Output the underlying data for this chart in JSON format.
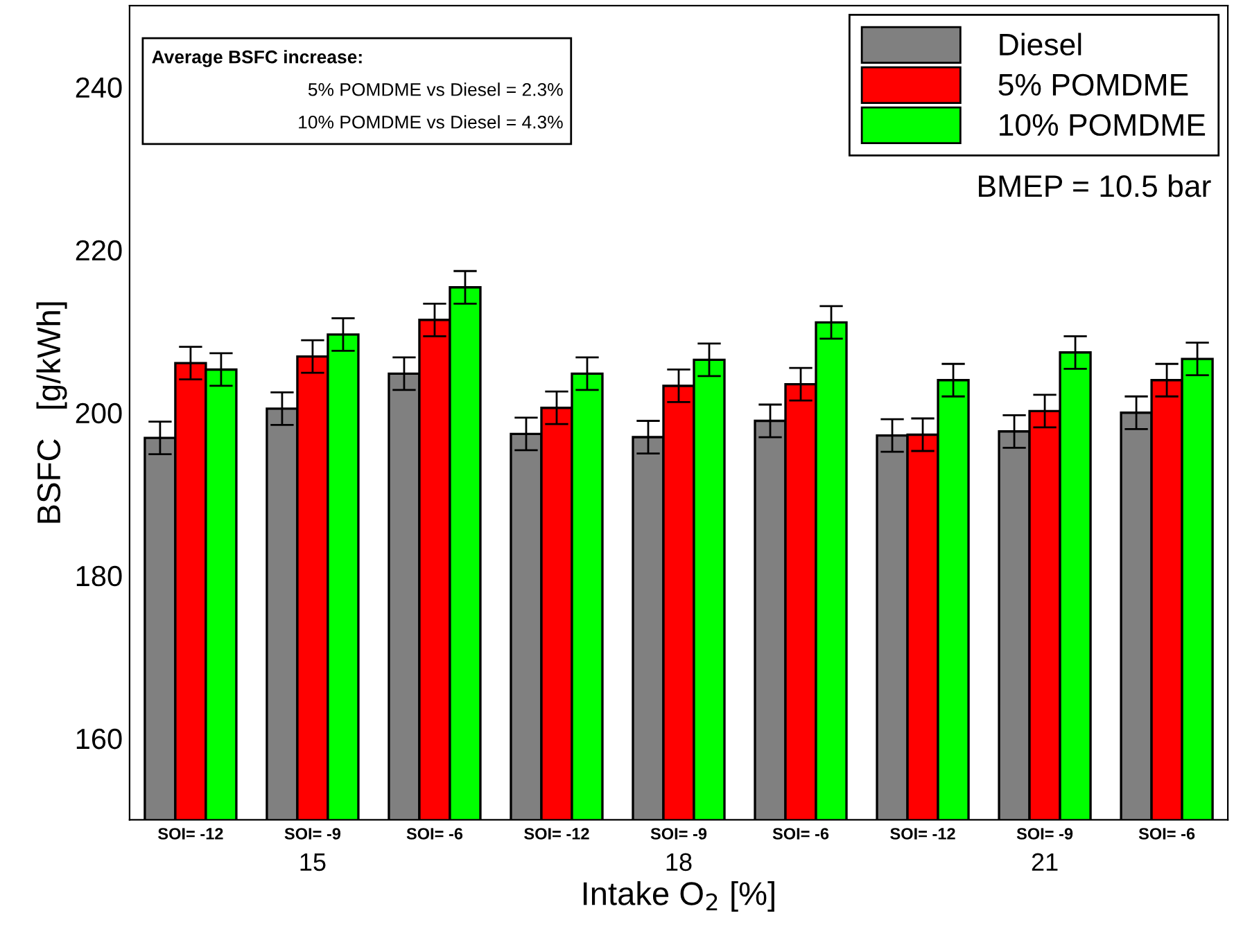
{
  "chart_data": {
    "type": "bar",
    "xlabel": "Intake O$_{2}$ [%]",
    "ylabel": "BSFC   [g/kWh]",
    "categories": [
      "SOI= -12",
      "SOI= -9",
      "SOI= -6",
      "SOI= -12",
      "SOI= -9",
      "SOI= -6",
      "SOI= -12",
      "SOI= -9",
      "SOI= -6"
    ],
    "series": [
      {
        "name": "Diesel",
        "color": "#808080",
        "values": [
          196.9,
          200.5,
          204.8,
          197.4,
          197.0,
          199.0,
          197.2,
          197.7,
          200.0
        ],
        "errors": [
          2,
          2,
          2,
          2,
          2,
          2,
          2,
          2,
          2
        ]
      },
      {
        "name": "5% POMDME",
        "color": "#ff0000",
        "values": [
          206.1,
          206.9,
          211.4,
          200.6,
          203.3,
          203.5,
          197.3,
          200.2,
          204.0
        ],
        "errors": [
          2,
          2,
          2,
          2,
          2,
          2,
          2,
          2,
          2
        ]
      },
      {
        "name": "10% POMDME",
        "color": "#00ff00",
        "values": [
          205.3,
          209.6,
          215.4,
          204.8,
          206.5,
          211.1,
          204.0,
          207.4,
          206.6
        ],
        "errors": [
          2,
          2,
          2,
          2,
          2,
          2,
          2,
          2,
          2
        ]
      }
    ],
    "annotations": [
      "Average BSFC increase:",
      "5% POMDME vs Diesel = 2.3%",
      "10% POMDME vs Diesel = 4.3%",
      "BMEP = 10.5 bar",
      "15",
      "18",
      "21"
    ],
    "ylim": [
      150,
      250
    ],
    "yticks": [
      160,
      180,
      200,
      220,
      240
    ],
    "grid": false,
    "legend": "top right"
  }
}
